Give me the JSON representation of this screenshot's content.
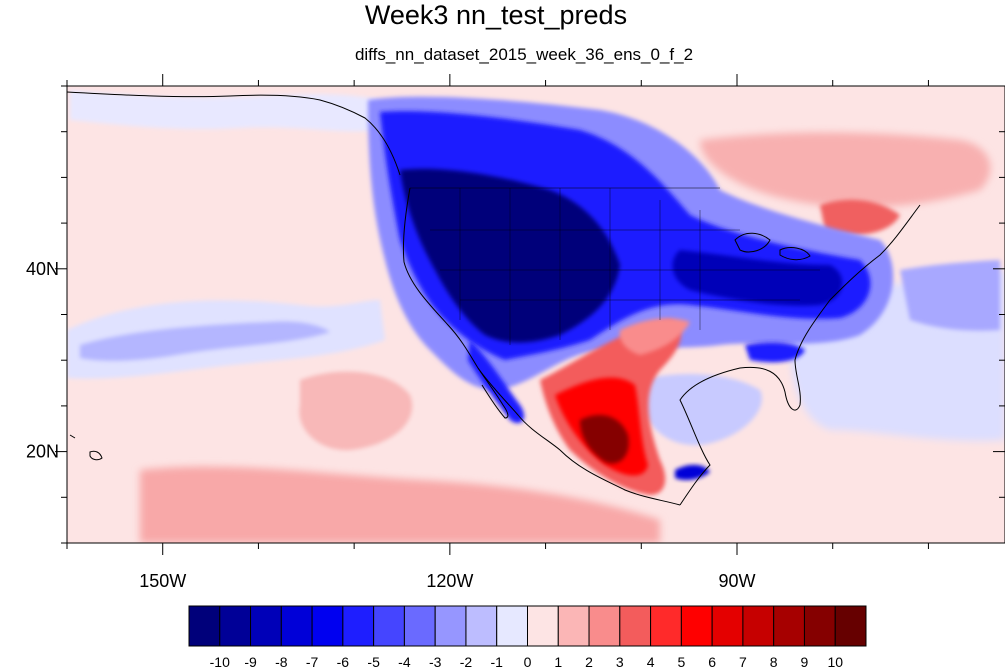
{
  "title": "Week3 nn_test_preds",
  "subtitle": "diffs_nn_dataset_2015_week_36_ens_0_f_2",
  "map": {
    "projection": "cylindrical-equidistant",
    "lon_range": [
      -160,
      -62
    ],
    "lat_range": [
      10,
      60
    ],
    "lon_ticks": [
      {
        "value": -150,
        "label": "150W"
      },
      {
        "value": -120,
        "label": "120W"
      },
      {
        "value": -90,
        "label": "90W"
      }
    ],
    "lat_ticks": [
      {
        "value": 40,
        "label": "40N"
      },
      {
        "value": 20,
        "label": "20N"
      }
    ],
    "minor_lon_step": 10,
    "minor_lat_step": 5,
    "ocean_background": "#fde4e4",
    "coastline_color": "#000000"
  },
  "colorbar": {
    "placement": "bottom",
    "levels": [
      "-10",
      "-9",
      "-8",
      "-7",
      "-6",
      "-5",
      "-4",
      "-3",
      "-2",
      "-1",
      "0",
      "1",
      "2",
      "3",
      "4",
      "5",
      "6",
      "7",
      "8",
      "9",
      "10"
    ],
    "colors": [
      "#00007a",
      "#000097",
      "#0000b8",
      "#0000d8",
      "#0000f0",
      "#1e1eff",
      "#4545ff",
      "#6a6aff",
      "#9696ff",
      "#bdbdff",
      "#e6e8ff",
      "#fde4e4",
      "#fbb6b6",
      "#f98c8c",
      "#f35c5c",
      "#ff2a2a",
      "#ff0000",
      "#e40000",
      "#c60000",
      "#a60000",
      "#850000",
      "#660000"
    ]
  }
}
